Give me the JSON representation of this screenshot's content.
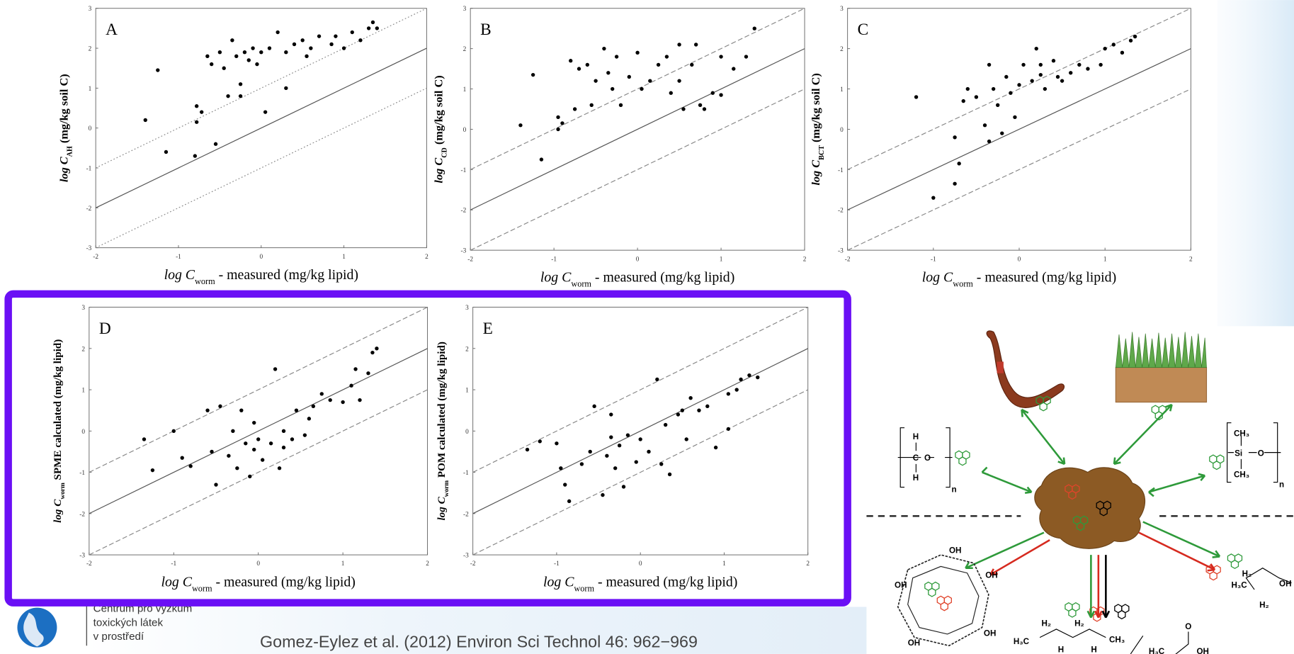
{
  "chart_data": [
    {
      "type": "scatter",
      "panel_label": "A",
      "xlabel": {
        "pre": "log C",
        "sub": "worm",
        "post": " - measured (mg/kg lipid)"
      },
      "ylabel": {
        "pre": "log C",
        "sub": "AH",
        "post": " (mg/kg soil C)"
      },
      "xlim": [
        -2,
        2
      ],
      "ylim": [
        -3,
        3
      ],
      "xticks": [
        -2,
        -1,
        0,
        1,
        2
      ],
      "yticks": [
        -3,
        -2,
        -1,
        0,
        1,
        2,
        3
      ],
      "color": "#000000",
      "reference_lines": [
        {
          "slope": 1,
          "intercept": 1,
          "style": "dotted"
        },
        {
          "slope": 1,
          "intercept": 0,
          "style": "solid"
        },
        {
          "slope": 1,
          "intercept": -1,
          "style": "dotted"
        }
      ],
      "x": [
        -1.4,
        -1.25,
        -1.15,
        -0.8,
        -0.78,
        -0.78,
        -0.72,
        -0.65,
        -0.6,
        -0.55,
        -0.5,
        -0.45,
        -0.4,
        -0.35,
        -0.3,
        -0.25,
        -0.2,
        -0.15,
        -0.1,
        -0.05,
        0.0,
        0.05,
        0.1,
        0.2,
        0.3,
        0.3,
        0.4,
        0.5,
        0.6,
        0.7,
        0.85,
        0.9,
        1.0,
        1.1,
        1.2,
        1.3,
        1.35,
        1.4,
        -0.25,
        0.55
      ],
      "values": [
        0.2,
        1.45,
        -0.6,
        -0.7,
        0.15,
        0.55,
        0.4,
        1.8,
        1.6,
        -0.4,
        1.9,
        1.5,
        0.8,
        2.2,
        1.8,
        1.1,
        1.9,
        1.7,
        2.0,
        1.6,
        1.9,
        0.4,
        2.0,
        2.4,
        1.0,
        1.9,
        2.1,
        2.2,
        2.0,
        2.3,
        2.1,
        2.3,
        2.0,
        2.4,
        2.2,
        2.5,
        2.65,
        2.5,
        0.8,
        1.8
      ]
    },
    {
      "type": "scatter",
      "panel_label": "B",
      "xlabel": {
        "pre": "log C",
        "sub": "worm",
        "post": " - measured (mg/kg lipid)"
      },
      "ylabel": {
        "pre": "log C",
        "sub": "CD",
        "post": " (mg/kg soil C)"
      },
      "xlim": [
        -2,
        2
      ],
      "ylim": [
        -3,
        3
      ],
      "xticks": [
        -2,
        -1,
        0,
        1,
        2
      ],
      "yticks": [
        -3,
        -2,
        -1,
        0,
        1,
        2,
        3
      ],
      "color": "#000000",
      "reference_lines": [
        {
          "slope": 1,
          "intercept": 1,
          "style": "dashed"
        },
        {
          "slope": 1,
          "intercept": 0,
          "style": "solid"
        },
        {
          "slope": 1,
          "intercept": -1,
          "style": "dashed"
        }
      ],
      "x": [
        -1.4,
        -1.25,
        -1.15,
        -0.95,
        -0.95,
        -0.9,
        -0.8,
        -0.75,
        -0.7,
        -0.6,
        -0.55,
        -0.5,
        -0.4,
        -0.35,
        -0.3,
        -0.25,
        -0.2,
        -0.1,
        0.0,
        0.05,
        0.15,
        0.25,
        0.35,
        0.4,
        0.5,
        0.5,
        0.55,
        0.65,
        0.7,
        0.75,
        0.8,
        0.9,
        1.0,
        1.0,
        1.15,
        1.3,
        1.4
      ],
      "values": [
        0.1,
        1.35,
        -0.75,
        0.3,
        0.0,
        0.15,
        1.7,
        0.5,
        1.5,
        1.6,
        0.6,
        1.2,
        2.0,
        1.4,
        1.0,
        1.8,
        0.6,
        1.3,
        1.9,
        1.0,
        1.2,
        1.6,
        1.8,
        0.9,
        2.1,
        1.2,
        0.5,
        1.6,
        2.1,
        0.6,
        0.5,
        0.9,
        0.85,
        1.8,
        1.5,
        1.8,
        2.5
      ]
    },
    {
      "type": "scatter",
      "panel_label": "C",
      "xlabel": {
        "pre": "log C",
        "sub": "worm",
        "post": " - measured (mg/kg lipid)"
      },
      "ylabel": {
        "pre": "log C",
        "sub": "BCT",
        "post": " (mg/kg soil C)"
      },
      "xlim": [
        -2,
        2
      ],
      "ylim": [
        -3,
        3
      ],
      "xticks": [
        -2,
        -1,
        0,
        1,
        2
      ],
      "yticks": [
        -3,
        -2,
        -1,
        0,
        1,
        2,
        3
      ],
      "color": "#000000",
      "reference_lines": [
        {
          "slope": 1,
          "intercept": 1,
          "style": "dashed"
        },
        {
          "slope": 1,
          "intercept": 0,
          "style": "solid"
        },
        {
          "slope": 1,
          "intercept": -1,
          "style": "dashed"
        }
      ],
      "x": [
        -1.2,
        -1.0,
        -0.75,
        -0.7,
        -0.75,
        -0.65,
        -0.6,
        -0.5,
        -0.4,
        -0.35,
        -0.35,
        -0.3,
        -0.25,
        -0.2,
        -0.15,
        -0.1,
        -0.05,
        0.0,
        0.05,
        0.15,
        0.2,
        0.25,
        0.3,
        0.4,
        0.45,
        0.5,
        0.6,
        0.7,
        0.8,
        0.95,
        1.0,
        1.1,
        1.2,
        1.3,
        1.35,
        0.25
      ],
      "values": [
        0.8,
        -1.7,
        -1.35,
        -0.85,
        -0.2,
        0.7,
        1.0,
        0.8,
        0.1,
        -0.3,
        1.6,
        1.0,
        0.6,
        -0.1,
        1.3,
        0.9,
        0.3,
        1.1,
        1.6,
        1.2,
        2.0,
        1.6,
        1.0,
        1.7,
        1.3,
        1.2,
        1.4,
        1.6,
        1.5,
        1.6,
        2.0,
        2.1,
        1.9,
        2.2,
        2.3,
        1.35
      ]
    },
    {
      "type": "scatter",
      "panel_label": "D",
      "xlabel": {
        "pre": "log C",
        "sub": "worm",
        "post": " - measured (mg/kg lipid)"
      },
      "ylabel": {
        "pre": "log C",
        "sub": "worm",
        "post": " SPME calculated  (mg/kg lipid)"
      },
      "xlim": [
        -2,
        2
      ],
      "ylim": [
        -3,
        3
      ],
      "xticks": [
        -2,
        -1,
        0,
        1,
        2
      ],
      "yticks": [
        -3,
        -2,
        -1,
        0,
        1,
        2,
        3
      ],
      "color": "#000000",
      "reference_lines": [
        {
          "slope": 1,
          "intercept": 1,
          "style": "dashed"
        },
        {
          "slope": 1,
          "intercept": 0,
          "style": "solid"
        },
        {
          "slope": 1,
          "intercept": -1,
          "style": "dashed"
        }
      ],
      "x": [
        -1.35,
        -1.25,
        -1.0,
        -0.9,
        -0.8,
        -0.6,
        -0.55,
        -0.5,
        -0.45,
        -0.35,
        -0.3,
        -0.25,
        -0.2,
        -0.15,
        -0.1,
        -0.05,
        0.0,
        0.05,
        0.15,
        0.2,
        0.25,
        0.3,
        0.4,
        0.45,
        0.55,
        0.6,
        0.65,
        0.75,
        0.85,
        1.0,
        1.1,
        1.15,
        1.2,
        1.3,
        1.35,
        1.4,
        0.3,
        -0.05
      ],
      "values": [
        -0.2,
        -0.95,
        0.0,
        -0.65,
        -0.85,
        0.5,
        -0.5,
        -1.3,
        0.6,
        -0.6,
        0.0,
        -0.9,
        0.5,
        -0.3,
        -1.1,
        0.2,
        -0.2,
        -0.7,
        -0.3,
        1.5,
        -0.9,
        0.0,
        -0.2,
        0.5,
        -0.1,
        0.3,
        0.6,
        0.9,
        0.75,
        0.7,
        1.1,
        1.5,
        0.75,
        1.4,
        1.9,
        2.0,
        -0.4,
        -0.45
      ]
    },
    {
      "type": "scatter",
      "panel_label": "E",
      "xlabel": {
        "pre": "log C",
        "sub": "worm",
        "post": " - measured (mg/kg lipid)"
      },
      "ylabel": {
        "pre": "log C",
        "sub": "worm",
        "post": " POM calculated (mg/kg lipid)"
      },
      "xlim": [
        -2,
        2
      ],
      "ylim": [
        -3,
        3
      ],
      "xticks": [
        -2,
        -1,
        0,
        1,
        2
      ],
      "yticks": [
        -3,
        -2,
        -1,
        0,
        1,
        2,
        3
      ],
      "color": "#000000",
      "reference_lines": [
        {
          "slope": 1,
          "intercept": 1,
          "style": "dashed"
        },
        {
          "slope": 1,
          "intercept": 0,
          "style": "solid"
        },
        {
          "slope": 1,
          "intercept": -1,
          "style": "dashed"
        }
      ],
      "x": [
        -1.35,
        -1.2,
        -1.0,
        -0.95,
        -0.9,
        -0.85,
        -0.7,
        -0.6,
        -0.55,
        -0.45,
        -0.4,
        -0.35,
        -0.3,
        -0.25,
        -0.2,
        -0.15,
        -0.05,
        0.0,
        0.1,
        0.2,
        0.25,
        0.3,
        0.35,
        0.45,
        0.5,
        0.55,
        0.6,
        0.7,
        0.8,
        0.9,
        1.05,
        1.05,
        1.15,
        1.2,
        1.3,
        1.4,
        -0.35
      ],
      "values": [
        -0.45,
        -0.25,
        -0.3,
        -0.9,
        -1.3,
        -1.7,
        -0.8,
        -0.5,
        0.6,
        -1.55,
        -0.6,
        0.4,
        -0.9,
        -0.35,
        -1.35,
        -0.1,
        -0.75,
        -0.2,
        -0.5,
        1.25,
        -0.8,
        0.15,
        -1.05,
        0.4,
        0.5,
        -0.2,
        0.8,
        0.5,
        0.6,
        -0.4,
        0.05,
        0.9,
        1.0,
        1.25,
        1.35,
        1.3,
        -0.15
      ]
    }
  ],
  "logo_text": [
    "Centrum pro výzkum",
    "toxických látek",
    "v prostředí"
  ],
  "citation": "Gomez-Eylez et al. (2012) Environ Sci Technol 46: 962−969",
  "diagram": {
    "pe": [
      "H",
      "C",
      "O",
      "H",
      "n"
    ],
    "pdms": [
      "CH₃",
      "Si",
      "O",
      "CH₃",
      "n"
    ],
    "alcohol": [
      "H₃C",
      "H₂",
      "H₂",
      "OH"
    ],
    "alkane": [
      "H₃C",
      "H₂",
      "H₂",
      "CH₃",
      "H",
      "H"
    ],
    "acid": [
      "O",
      "H₃C",
      "OH"
    ],
    "cyclodextrin": "OH"
  }
}
